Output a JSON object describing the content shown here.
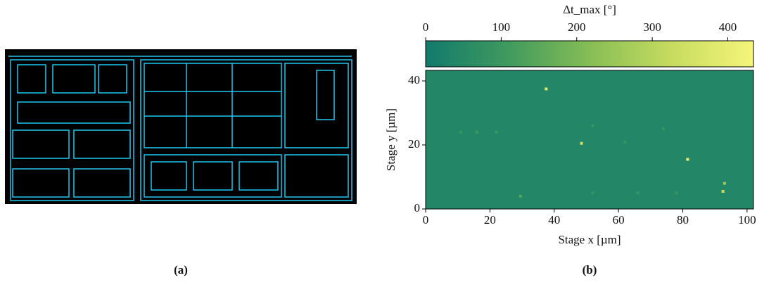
{
  "panel_labels": [
    "(a)",
    "(b)"
  ],
  "chart_data": {
    "type": "heatmap",
    "colorbar_label": "Δt_max [°]",
    "xlabel": "Stage x [µm]",
    "ylabel": "Stage y [µm]",
    "xlim": [
      0,
      102
    ],
    "xticks": [
      0,
      20,
      40,
      60,
      80,
      100
    ],
    "ylim": [
      0,
      43.3
    ],
    "yticks": [
      0,
      20,
      40
    ],
    "clim": [
      0,
      434
    ],
    "cticks": [
      0,
      100,
      200,
      300,
      400
    ],
    "colormap": [
      "#127a6c",
      "#3f9a5e",
      "#86bd55",
      "#c6dc5f",
      "#f5f57a"
    ],
    "background_value": 40,
    "spots": [
      {
        "x": 37.5,
        "y": 37.5,
        "value": 380
      },
      {
        "x": 48.5,
        "y": 20.5,
        "value": 340
      },
      {
        "x": 81.5,
        "y": 15.5,
        "value": 400
      },
      {
        "x": 92.5,
        "y": 5.5,
        "value": 330
      },
      {
        "x": 93,
        "y": 8,
        "value": 260
      },
      {
        "x": 29.5,
        "y": 4,
        "value": 140
      },
      {
        "x": 11,
        "y": 24,
        "value": 90
      },
      {
        "x": 16,
        "y": 24,
        "value": 100
      },
      {
        "x": 22,
        "y": 24,
        "value": 90
      },
      {
        "x": 52,
        "y": 26,
        "value": 90
      },
      {
        "x": 62,
        "y": 21,
        "value": 90
      },
      {
        "x": 74,
        "y": 25,
        "value": 90
      },
      {
        "x": 52,
        "y": 5,
        "value": 90
      },
      {
        "x": 66,
        "y": 5,
        "value": 90
      },
      {
        "x": 78,
        "y": 5,
        "value": 90
      }
    ]
  }
}
